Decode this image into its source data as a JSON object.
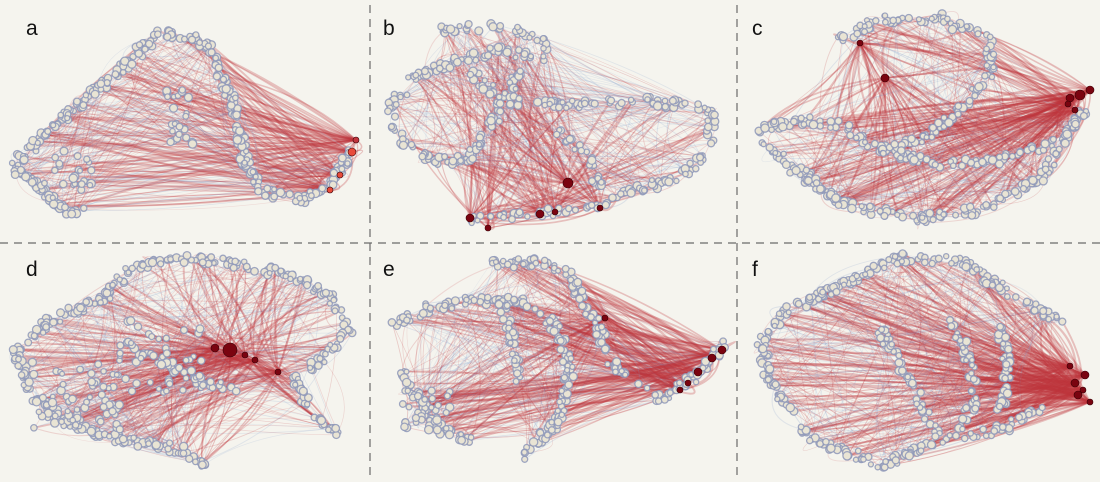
{
  "figure": {
    "panels": [
      {
        "label": "a"
      },
      {
        "label": "b"
      },
      {
        "label": "c"
      },
      {
        "label": "d"
      },
      {
        "label": "e"
      },
      {
        "label": "f"
      }
    ],
    "colors": {
      "background": "#f5f4ee",
      "node_fill": "#e9e4d4",
      "node_halo": "#8e98b8",
      "edge_red": "#c0353d",
      "edge_blue": "#7f9ccc",
      "hub": "#7a0410",
      "divider": "#6a6a6a"
    }
  }
}
